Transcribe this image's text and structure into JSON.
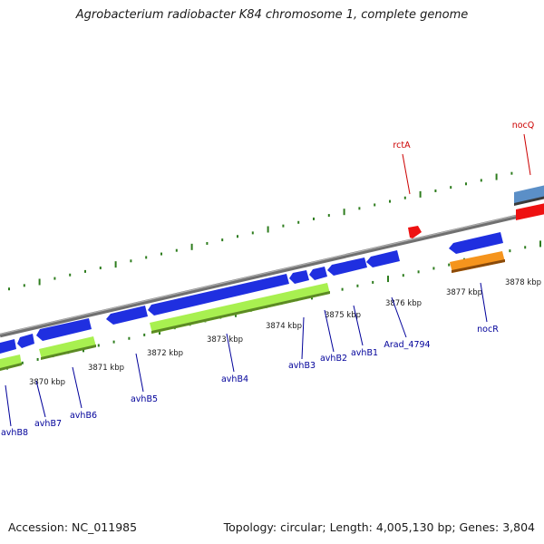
{
  "title": "Agrobacterium radiobacter K84 chromosome 1, complete genome",
  "footer": {
    "accession": "Accession: NC_011985",
    "stats": "Topology: circular; Length: 4,005,130 bp; Genes: 3,804"
  },
  "colors": {
    "backbone": "#7a7a7a",
    "tick": "#2e7d1e",
    "kbp_label": "#1a1a1a",
    "gene_label_forward": "#cc0000",
    "gene_label_reverse": "#00009a",
    "gene_blue": "#1f2fe0",
    "gene_green": "#a8f050",
    "gene_red": "#ee1111",
    "gene_orange": "#f5941d",
    "gene_steel": "#5b8fc7"
  },
  "scale": {
    "labels": [
      "3870 kbp",
      "3871 kbp",
      "3872 kbp",
      "3873 kbp",
      "3874 kbp",
      "3875 kbp",
      "3876 kbp",
      "3877 kbp",
      "3878 kbp"
    ]
  },
  "gene_labels": {
    "forward": [
      "rctA",
      "nocQ"
    ],
    "reverse": [
      "avhB8",
      "avhB7",
      "avhB6",
      "avhB5",
      "avhB4",
      "avhB3",
      "avhB2",
      "avhB1",
      "Arad_4794",
      "nocR"
    ]
  }
}
